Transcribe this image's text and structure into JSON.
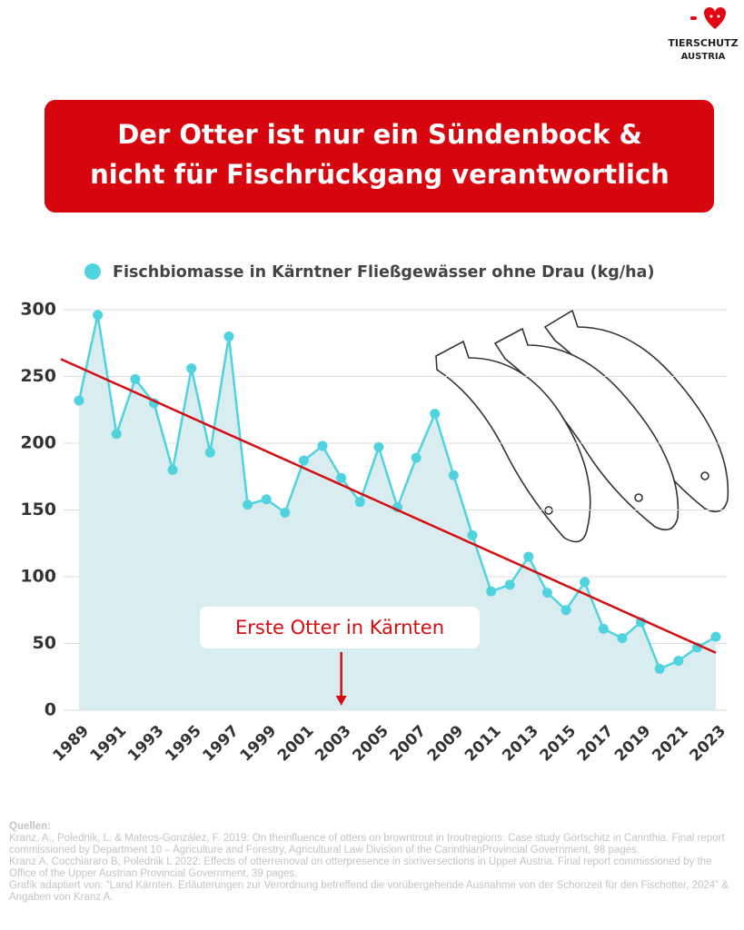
{
  "logo": {
    "line1": "TIERSCHUTZ",
    "line2": "AUSTRIA"
  },
  "chart_data": {
    "type": "line",
    "title": [
      "Der Otter ist nur ein Sündenbock &",
      "nicht für Fischrückgang verantwortlich"
    ],
    "x": [
      1989,
      1990,
      1991,
      1992,
      1993,
      1994,
      1995,
      1996,
      1997,
      1998,
      1999,
      2000,
      2001,
      2002,
      2003,
      2004,
      2005,
      2006,
      2007,
      2008,
      2009,
      2010,
      2011,
      2012,
      2013,
      2014,
      2015,
      2016,
      2017,
      2018,
      2019,
      2020,
      2021,
      2022,
      2023
    ],
    "series": [
      {
        "name": "Fischbiomasse in Kärntner Fließgewässer ohne Drau (kg/ha)",
        "color": "#4fd3df",
        "values": [
          232,
          296,
          207,
          248,
          230,
          180,
          256,
          193,
          280,
          154,
          158,
          148,
          187,
          198,
          174,
          156,
          197,
          152,
          189,
          222,
          176,
          131,
          89,
          94,
          115,
          88,
          75,
          96,
          61,
          54,
          66,
          31,
          37,
          47,
          55
        ]
      }
    ],
    "trend": {
      "start": 263,
      "end": 43,
      "color": "#d40d12"
    },
    "area_color": "#d9edf1",
    "xlim": [
      1989,
      2023
    ],
    "xticks": [
      1989,
      1991,
      1993,
      1995,
      1997,
      1999,
      2001,
      2003,
      2005,
      2007,
      2009,
      2011,
      2013,
      2015,
      2017,
      2019,
      2021,
      2023
    ],
    "ylim": [
      0,
      300
    ],
    "yticks": [
      0,
      50,
      100,
      150,
      200,
      250,
      300
    ],
    "grid": true,
    "annotation": {
      "text": "Erste Otter in Kärnten",
      "x": 2003
    }
  },
  "sources": {
    "heading": "Quellen:",
    "lines": [
      "Kranz, A., Polednik, L. & Mateos-González, F. 2019: On theinfluence of otters on browntrout in troutregions: Case study Görtschitz in Carinthia. Final report commissioned by Department 10 – Agriculture and Forestry, Agricultural Law Division of the CarinthianProvincial Government, 98 pages.",
      "Kranz A, Cocchiararo B, Polednik L 2022: Effects of otterremoval on otterpresence in sixriversections in Upper Austria. Final report commissioned by the Office of the Upper Austrian Provincial Government, 39 pages.",
      "Grafik adaptiert von: “Land Kärnten. Erläuterungen zur Verordnung betreffend die vorübergehende Ausnahme von der Schonzeit für den Fischotter, 2024” & Angaben von Kranz A."
    ]
  }
}
